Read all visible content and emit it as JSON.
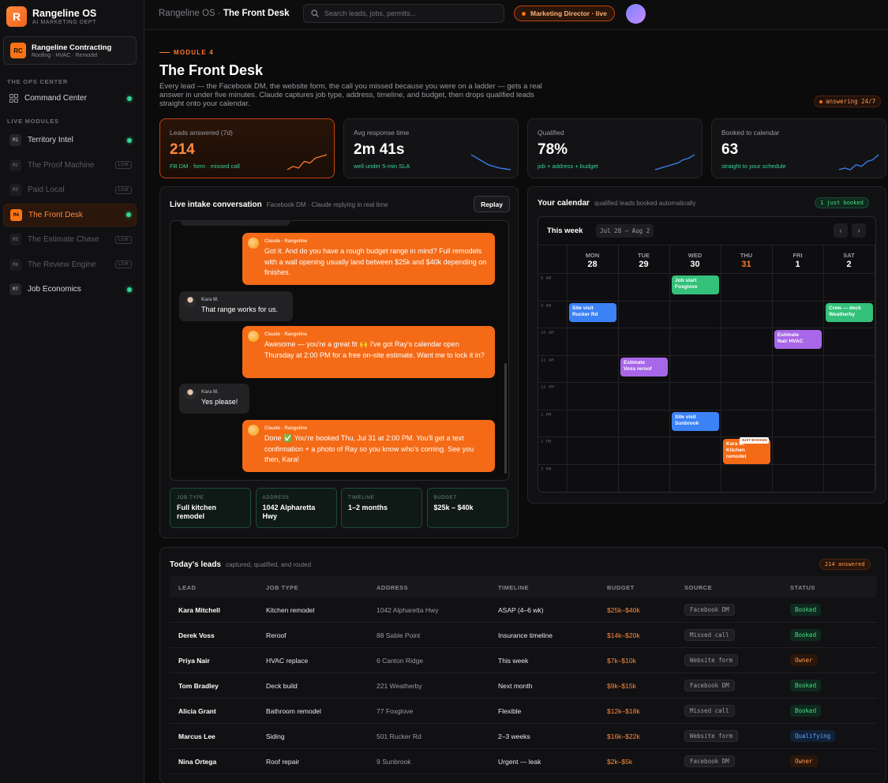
{
  "brand": {
    "name": "Rangeline OS",
    "sub": "AI MARKETING DEPT",
    "logo": "R"
  },
  "org": {
    "initials": "RC",
    "name": "Rangeline Contracting",
    "sub": "Roofing · HVAC · Remodel"
  },
  "sidebar": {
    "ops_label": "THE OPS CENTER",
    "command": {
      "label": "Command Center",
      "icon": "grid-icon"
    },
    "live_label": "LIVE MODULES",
    "modules": [
      {
        "code": "M1",
        "label": "Territory Intel",
        "state": "live"
      },
      {
        "code": "M2",
        "label": "The Proof Machine",
        "state": "soon",
        "tag": "LIVE"
      },
      {
        "code": "M3",
        "label": "Paid Local",
        "state": "soon",
        "tag": "LIVE"
      },
      {
        "code": "M4",
        "label": "The Front Desk",
        "state": "active"
      },
      {
        "code": "M5",
        "label": "The Estimate Chase",
        "state": "soon",
        "tag": "LIVE"
      },
      {
        "code": "M6",
        "label": "The Review Engine",
        "state": "soon",
        "tag": "LIVE"
      },
      {
        "code": "M7",
        "label": "Job Economics",
        "state": "live"
      }
    ]
  },
  "topbar": {
    "crumb_prefix": "Rangeline OS ·",
    "crumb_page": "The Front Desk",
    "search_placeholder": "Search leads, jobs, permits...",
    "role": "Marketing Director · live"
  },
  "header": {
    "kicker": "MODULE 4",
    "title": "The Front Desk",
    "desc": "Every lead — the Facebook DM, the website form, the call you missed because you were on a ladder — gets a real answer in under five minutes. Claude captures job type, address, timeline, and budget, then drops qualified leads straight onto your calendar.",
    "status": "answering 24/7"
  },
  "stats": [
    {
      "label": "Leads answered (7d)",
      "value": "214",
      "sub": "FB DM · form · missed call",
      "spark": [
        3,
        5,
        4,
        8,
        7,
        10,
        11,
        12
      ]
    },
    {
      "label": "Avg response time",
      "value": "2m 41s",
      "sub": "well under 5-min SLA",
      "spark": [
        12,
        10,
        8,
        6,
        5,
        4,
        3.5,
        3
      ]
    },
    {
      "label": "Qualified",
      "value": "78%",
      "sub": "job + address + budget",
      "spark": [
        2,
        3,
        4,
        5,
        6,
        8,
        9,
        11
      ]
    },
    {
      "label": "Booked to calendar",
      "value": "63",
      "sub": "straight to your schedule",
      "spark": [
        2,
        3,
        2,
        5,
        4,
        7,
        8,
        11
      ]
    }
  ],
  "chat": {
    "title": "Live intake conversation",
    "sub": "Facebook DM · Claude replying in real time",
    "replay": "Replay",
    "messages": [
      {
        "role": "ai",
        "who": "Claude · Rangeline",
        "text": "Got it. And do you have a rough budget range in mind? Full remodels with a wall opening usually land between $25k and $40k depending on finishes."
      },
      {
        "role": "user",
        "who": "Kara M.",
        "text": "That range works for us."
      },
      {
        "role": "ai",
        "who": "Claude · Rangeline",
        "text": "Awesome — you're a great fit 🙌 I've got Ray's calendar open Thursday at 2:00 PM for a free on-site estimate. Want me to lock it in?"
      },
      {
        "role": "user",
        "who": "Kara M.",
        "text": "Yes please!"
      },
      {
        "role": "ai",
        "who": "Claude · Rangeline",
        "text": "Done ✅ You're booked Thu, Jul 31 at 2:00 PM. You'll get a text confirmation + a photo of Ray so you know who's coming. See you then, Kara!"
      }
    ],
    "fields": [
      {
        "label": "JOB TYPE",
        "value": "Full kitchen remodel"
      },
      {
        "label": "ADDRESS",
        "value": "1042 Alpharetta Hwy"
      },
      {
        "label": "TIMELINE",
        "value": "1–2 months"
      },
      {
        "label": "BUDGET",
        "value": "$25k – $40k"
      }
    ]
  },
  "calendar": {
    "title": "Your calendar",
    "sub": "qualified leads booked automatically",
    "badge": "1 just booked",
    "week_label": "This week",
    "range": "Jul 28 – Aug 2",
    "days": [
      {
        "n": "MON",
        "d": "28"
      },
      {
        "n": "TUE",
        "d": "29"
      },
      {
        "n": "WED",
        "d": "30"
      },
      {
        "n": "THU",
        "d": "31"
      },
      {
        "n": "FRI",
        "d": "1"
      },
      {
        "n": "SAT",
        "d": "2"
      }
    ],
    "hours": [
      "8 AM",
      "9 AM",
      "10 AM",
      "11 AM",
      "12 PM",
      "1 PM",
      "2 PM",
      "3 PM"
    ],
    "events": [
      {
        "day": 2,
        "hour": 0,
        "text": "Job start\nFoxglove",
        "color": "green"
      },
      {
        "day": 0,
        "hour": 1,
        "text": "Site visit\nRucker Rd",
        "color": "blue"
      },
      {
        "day": 5,
        "hour": 1,
        "text": "Crew — deck\nWeatherby",
        "color": "green"
      },
      {
        "day": 4,
        "hour": 2,
        "text": "Estimate\nNair HVAC",
        "color": "purple"
      },
      {
        "day": 1,
        "hour": 3,
        "text": "Estimate\nVoss reroof",
        "color": "purple"
      },
      {
        "day": 2,
        "hour": 5,
        "text": "Site visit\nSunbrook",
        "color": "blue"
      },
      {
        "day": 3,
        "hour": 6,
        "text": "Kara M.\nKitchen\nremodel",
        "color": "orange",
        "tag": "JUST BOOKED"
      }
    ]
  },
  "leads": {
    "title": "Today's leads",
    "sub": "captured, qualified, and routed",
    "badge": "214 answered",
    "columns": [
      "LEAD",
      "JOB TYPE",
      "ADDRESS",
      "TIMELINE",
      "BUDGET",
      "SOURCE",
      "STATUS"
    ],
    "rows": [
      {
        "lead": "Kara Mitchell",
        "job": "Kitchen remodel",
        "address": "1042 Alpharetta Hwy",
        "timeline": "ASAP (4–6 wk)",
        "budget": "$25k–$40k",
        "source": "Facebook DM",
        "status": "Booked"
      },
      {
        "lead": "Derek Voss",
        "job": "Reroof",
        "address": "88 Sable Point",
        "timeline": "Insurance timeline",
        "budget": "$14k–$20k",
        "source": "Missed call",
        "status": "Booked"
      },
      {
        "lead": "Priya Nair",
        "job": "HVAC replace",
        "address": "6 Canton Ridge",
        "timeline": "This week",
        "budget": "$7k–$10k",
        "source": "Website form",
        "status": "Owner"
      },
      {
        "lead": "Tom Bradley",
        "job": "Deck build",
        "address": "221 Weatherby",
        "timeline": "Next month",
        "budget": "$9k–$15k",
        "source": "Facebook DM",
        "status": "Booked"
      },
      {
        "lead": "Alicia Grant",
        "job": "Bathroom remodel",
        "address": "77 Foxglove",
        "timeline": "Flexible",
        "budget": "$12k–$18k",
        "source": "Missed call",
        "status": "Booked"
      },
      {
        "lead": "Marcus Lee",
        "job": "Siding",
        "address": "501 Rucker Rd",
        "timeline": "2–3 weeks",
        "budget": "$16k–$22k",
        "source": "Website form",
        "status": "Qualifying"
      },
      {
        "lead": "Nina Ortega",
        "job": "Roof repair",
        "address": "9 Sunbrook",
        "timeline": "Urgent — leak",
        "budget": "$2k–$5k",
        "source": "Facebook DM",
        "status": "Owner"
      }
    ]
  }
}
